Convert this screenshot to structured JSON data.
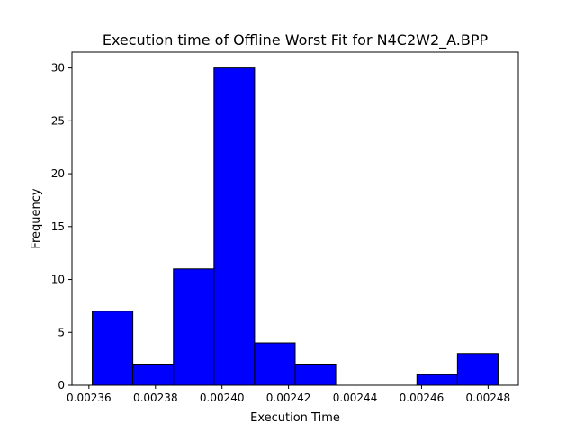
{
  "chart_data": {
    "type": "bar",
    "title": "Execution time of Offline Worst Fit for N4C2W2_A.BPP",
    "xlabel": "Execution Time",
    "ylabel": "Frequency",
    "bin_edges": [
      0.002361,
      0.0023732,
      0.0023854,
      0.0023976,
      0.0024098,
      0.002422,
      0.0024342,
      0.0024464,
      0.0024586,
      0.0024708,
      0.002483
    ],
    "values": [
      7,
      2,
      11,
      30,
      4,
      2,
      0,
      0,
      1,
      3
    ],
    "xlim": [
      0.0023549,
      0.0024891
    ],
    "ylim": [
      0,
      31.5
    ],
    "x_ticks": [
      0.00236,
      0.00238,
      0.0024,
      0.00242,
      0.00244,
      0.00246,
      0.00248
    ],
    "x_tick_labels": [
      "0.00236",
      "0.00238",
      "0.00240",
      "0.00242",
      "0.00244",
      "0.00246",
      "0.00248"
    ],
    "y_ticks": [
      0,
      5,
      10,
      15,
      20,
      25,
      30
    ],
    "y_tick_labels": [
      "0",
      "5",
      "10",
      "15",
      "20",
      "25",
      "30"
    ],
    "bar_color": "#0000ff",
    "edge_color": "#000000",
    "grid": false,
    "legend": "none"
  }
}
